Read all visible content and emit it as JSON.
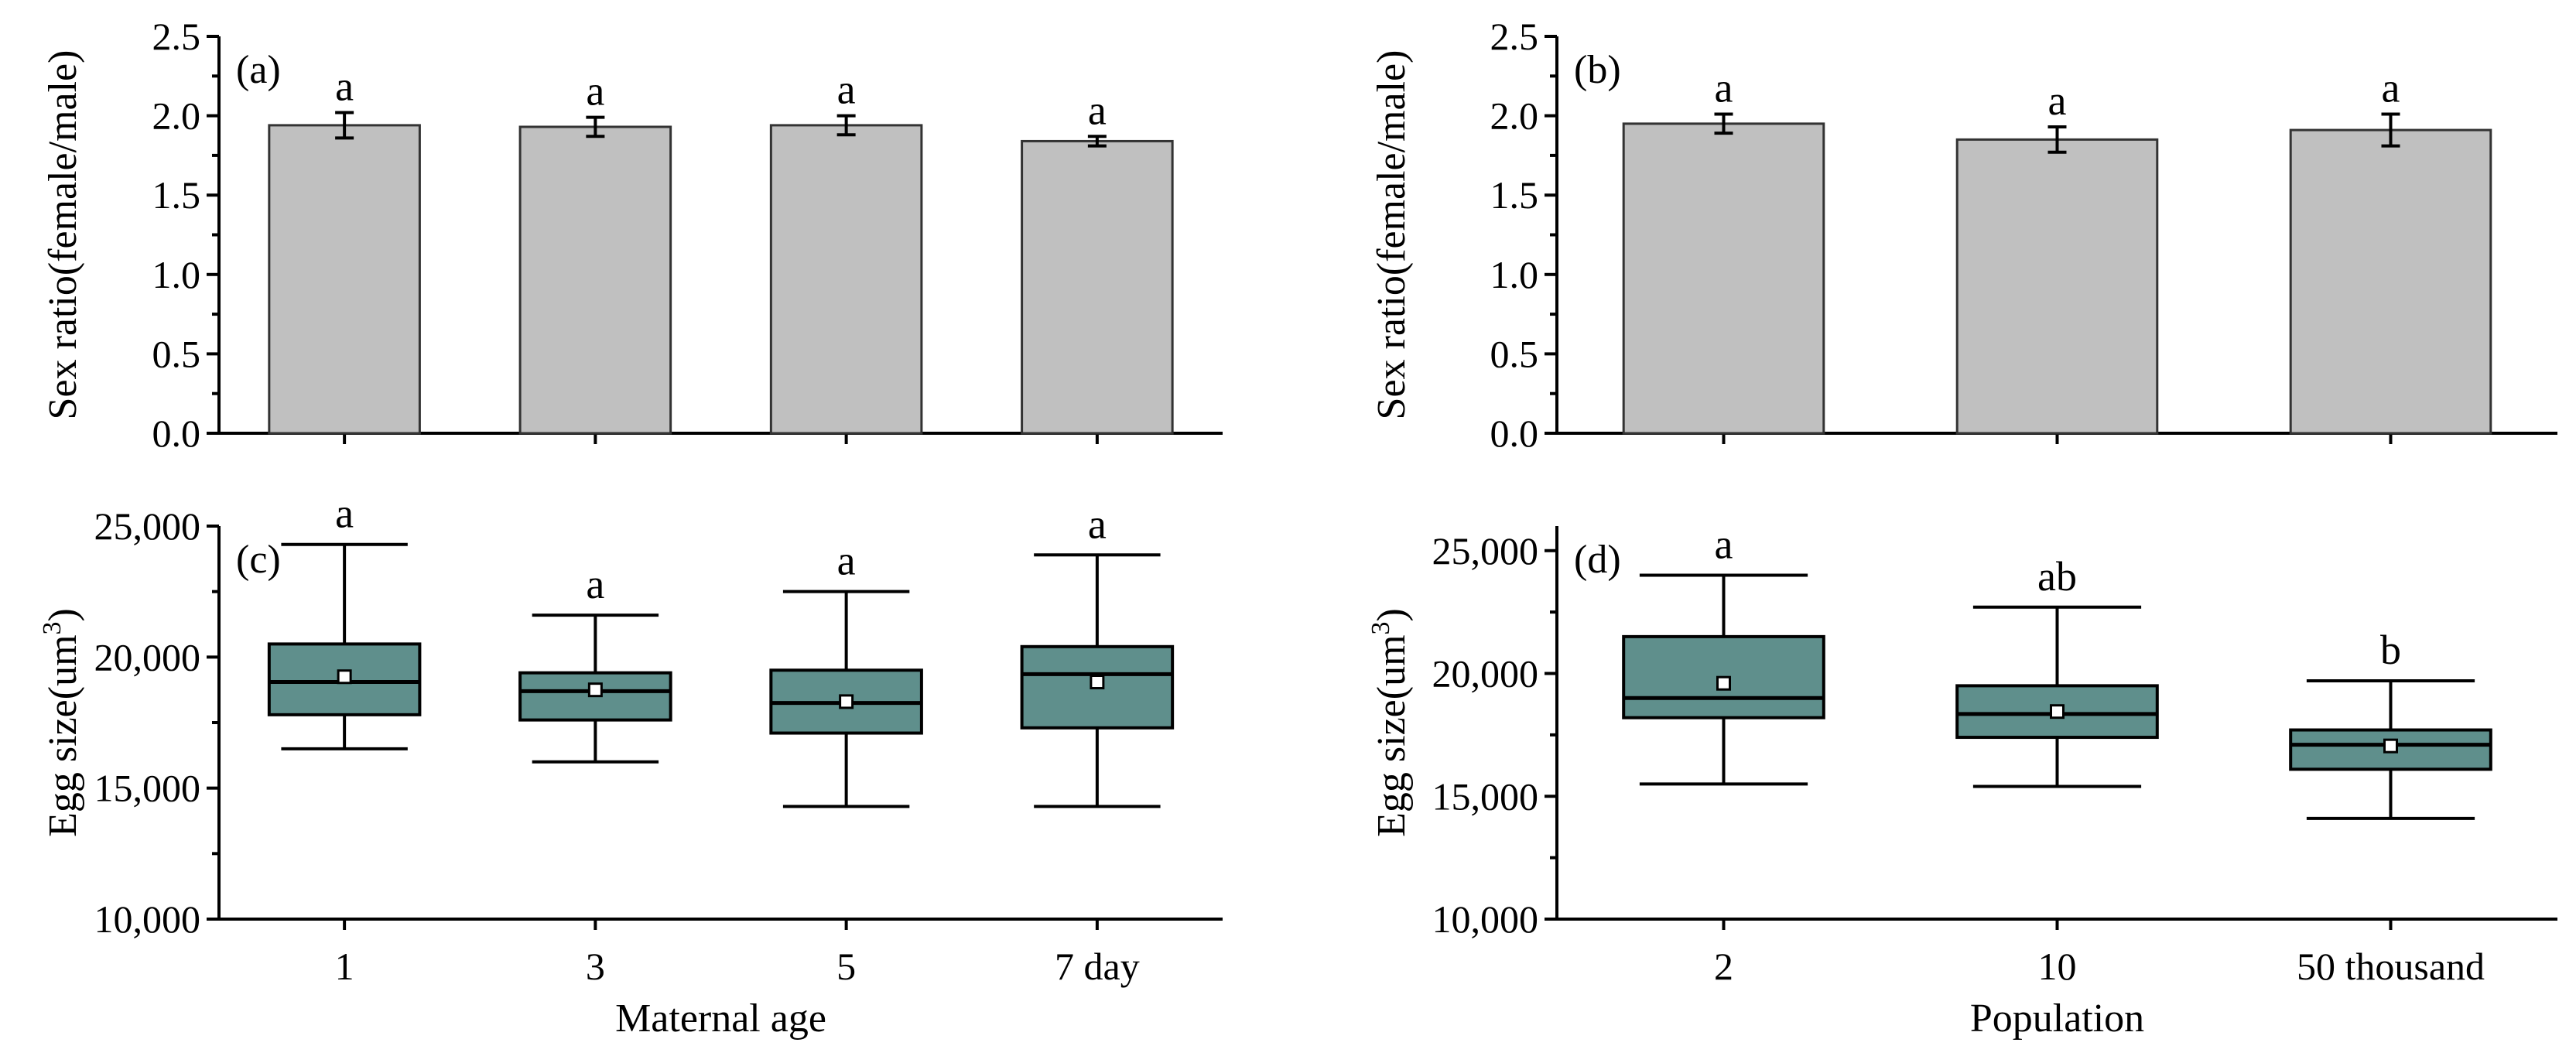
{
  "colors": {
    "bar": "#c0c0c0",
    "box": "#5f8f8c"
  },
  "chart_data": [
    {
      "id": "a",
      "panel_label": "(a)",
      "type": "bar",
      "ylabel": "Sex ratio(female/male)",
      "xlabel": "",
      "ylim": [
        0,
        2.5
      ],
      "yticks": [
        "0.0",
        "0.5",
        "1.0",
        "1.5",
        "2.0",
        "2.5"
      ],
      "categories": [
        "1",
        "3",
        "5",
        "7 day"
      ],
      "show_category_labels": false,
      "values": [
        1.94,
        1.93,
        1.94,
        1.84
      ],
      "errors": [
        0.08,
        0.06,
        0.06,
        0.03
      ],
      "letters": [
        "a",
        "a",
        "a",
        "a"
      ]
    },
    {
      "id": "b",
      "panel_label": "(b)",
      "type": "bar",
      "ylabel": "Sex ratio(female/male)",
      "xlabel": "",
      "ylim": [
        0,
        2.5
      ],
      "yticks": [
        "0.0",
        "0.5",
        "1.0",
        "1.5",
        "2.0",
        "2.5"
      ],
      "categories": [
        "2",
        "10",
        "50 thousand"
      ],
      "show_category_labels": false,
      "values": [
        1.95,
        1.85,
        1.91
      ],
      "errors": [
        0.06,
        0.08,
        0.1
      ],
      "letters": [
        "a",
        "a",
        "a"
      ]
    },
    {
      "id": "c",
      "panel_label": "(c)",
      "type": "box",
      "ylabel": "Egg size(um3)",
      "xlabel": "Maternal age",
      "ylim": [
        10000,
        25000
      ],
      "yticks": [
        "10,000",
        "15,000",
        "20,000",
        "25,000"
      ],
      "categories": [
        "1",
        "3",
        "5",
        "7 day"
      ],
      "show_category_labels": true,
      "boxes": [
        {
          "min": 16500,
          "q1": 17800,
          "median": 19050,
          "q3": 20500,
          "max": 24300,
          "mean": 19250
        },
        {
          "min": 16000,
          "q1": 17600,
          "median": 18700,
          "q3": 19400,
          "max": 21600,
          "mean": 18750
        },
        {
          "min": 14300,
          "q1": 17100,
          "median": 18250,
          "q3": 19500,
          "max": 22500,
          "mean": 18300
        },
        {
          "min": 14300,
          "q1": 17300,
          "median": 19350,
          "q3": 20400,
          "max": 23900,
          "mean": 19050
        }
      ],
      "letters": [
        "a",
        "a",
        "a",
        "a"
      ]
    },
    {
      "id": "d",
      "panel_label": "(d)",
      "type": "box",
      "ylabel": "Egg size(um3)",
      "xlabel": "Population",
      "ylim": [
        10000,
        26000
      ],
      "yticks": [
        "10,000",
        "15,000",
        "20,000",
        "25,000"
      ],
      "categories": [
        "2",
        "10",
        "50 thousand"
      ],
      "show_category_labels": true,
      "boxes": [
        {
          "min": 15500,
          "q1": 18200,
          "median": 19000,
          "q3": 21500,
          "max": 24000,
          "mean": 19600
        },
        {
          "min": 15400,
          "q1": 17400,
          "median": 18350,
          "q3": 19500,
          "max": 22700,
          "mean": 18450
        },
        {
          "min": 14100,
          "q1": 16100,
          "median": 17100,
          "q3": 17700,
          "max": 19700,
          "mean": 17050
        }
      ],
      "letters": [
        "a",
        "ab",
        "b"
      ]
    }
  ]
}
